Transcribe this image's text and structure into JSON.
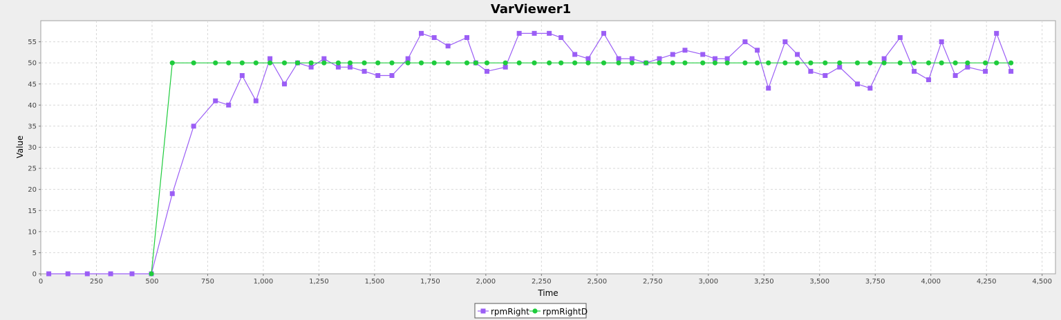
{
  "window": {
    "title": "VarViewer1"
  },
  "colors": {
    "background": "#eeeeee",
    "plot_background": "#ffffff",
    "rpmRight": "#9b5ef5",
    "rpmRightD": "#1ecc3c",
    "grid": "#d8d8d8"
  },
  "chart_data": {
    "type": "line",
    "title": "VarViewer1",
    "xlabel": "Time",
    "ylabel": "Value",
    "xlim": [
      0,
      4560
    ],
    "ylim": [
      0,
      60
    ],
    "x_ticks": [
      0,
      250,
      500,
      750,
      1000,
      1250,
      1500,
      1750,
      2000,
      2250,
      2500,
      2750,
      3000,
      3250,
      3500,
      3750,
      4000,
      4250,
      4500
    ],
    "x_tick_labels": [
      "0",
      "250",
      "500",
      "750",
      "1,000",
      "1,250",
      "1,500",
      "1,750",
      "2,000",
      "2,250",
      "2,500",
      "2,750",
      "3,000",
      "3,250",
      "3,500",
      "3,750",
      "4,000",
      "4,250",
      "4,500"
    ],
    "y_ticks": [
      0,
      5,
      10,
      15,
      20,
      25,
      30,
      35,
      40,
      45,
      50,
      55
    ],
    "y_tick_labels": [
      "0",
      "5",
      "10",
      "15",
      "20",
      "25",
      "30",
      "35",
      "40",
      "45",
      "50",
      "55"
    ],
    "grid": true,
    "legend_position": "bottom-center",
    "series": [
      {
        "name": "rpmRight",
        "marker": "square",
        "color": "#9b5ef5",
        "points": [
          [
            36,
            0
          ],
          [
            122,
            0
          ],
          [
            209,
            0
          ],
          [
            314,
            0
          ],
          [
            410,
            0
          ],
          [
            497,
            0
          ],
          [
            591,
            19
          ],
          [
            687,
            35
          ],
          [
            785,
            41
          ],
          [
            844,
            40
          ],
          [
            905,
            47
          ],
          [
            967,
            41
          ],
          [
            1030,
            51
          ],
          [
            1095,
            45
          ],
          [
            1154,
            50
          ],
          [
            1215,
            49
          ],
          [
            1273,
            51
          ],
          [
            1337,
            49
          ],
          [
            1390,
            49
          ],
          [
            1454,
            48
          ],
          [
            1515,
            47
          ],
          [
            1578,
            47
          ],
          [
            1650,
            51
          ],
          [
            1710,
            57
          ],
          [
            1768,
            56
          ],
          [
            1830,
            54
          ],
          [
            1915,
            56
          ],
          [
            1955,
            50
          ],
          [
            2005,
            48
          ],
          [
            2088,
            49
          ],
          [
            2150,
            57
          ],
          [
            2218,
            57
          ],
          [
            2285,
            57
          ],
          [
            2338,
            56
          ],
          [
            2400,
            52
          ],
          [
            2460,
            51
          ],
          [
            2530,
            57
          ],
          [
            2597,
            51
          ],
          [
            2657,
            51
          ],
          [
            2720,
            50
          ],
          [
            2780,
            51
          ],
          [
            2840,
            52
          ],
          [
            2895,
            53
          ],
          [
            2975,
            52
          ],
          [
            3030,
            51
          ],
          [
            3085,
            51
          ],
          [
            3165,
            55
          ],
          [
            3220,
            53
          ],
          [
            3270,
            44
          ],
          [
            3345,
            55
          ],
          [
            3400,
            52
          ],
          [
            3460,
            48
          ],
          [
            3525,
            47
          ],
          [
            3590,
            49
          ],
          [
            3670,
            45
          ],
          [
            3727,
            44
          ],
          [
            3790,
            51
          ],
          [
            3862,
            56
          ],
          [
            3925,
            48
          ],
          [
            3990,
            46
          ],
          [
            4048,
            55
          ],
          [
            4110,
            47
          ],
          [
            4165,
            49
          ],
          [
            4245,
            48
          ],
          [
            4295,
            57
          ],
          [
            4360,
            48
          ]
        ]
      },
      {
        "name": "rpmRightD",
        "marker": "circle",
        "color": "#1ecc3c",
        "points": [
          [
            497,
            0
          ],
          [
            591,
            50
          ],
          [
            687,
            50
          ],
          [
            785,
            50
          ],
          [
            844,
            50
          ],
          [
            905,
            50
          ],
          [
            967,
            50
          ],
          [
            1030,
            50
          ],
          [
            1095,
            50
          ],
          [
            1154,
            50
          ],
          [
            1215,
            50
          ],
          [
            1273,
            50
          ],
          [
            1337,
            50
          ],
          [
            1390,
            50
          ],
          [
            1454,
            50
          ],
          [
            1515,
            50
          ],
          [
            1578,
            50
          ],
          [
            1650,
            50
          ],
          [
            1710,
            50
          ],
          [
            1768,
            50
          ],
          [
            1830,
            50
          ],
          [
            1915,
            50
          ],
          [
            1955,
            50
          ],
          [
            2005,
            50
          ],
          [
            2088,
            50
          ],
          [
            2150,
            50
          ],
          [
            2218,
            50
          ],
          [
            2285,
            50
          ],
          [
            2338,
            50
          ],
          [
            2400,
            50
          ],
          [
            2460,
            50
          ],
          [
            2530,
            50
          ],
          [
            2597,
            50
          ],
          [
            2657,
            50
          ],
          [
            2720,
            50
          ],
          [
            2780,
            50
          ],
          [
            2840,
            50
          ],
          [
            2895,
            50
          ],
          [
            2975,
            50
          ],
          [
            3030,
            50
          ],
          [
            3085,
            50
          ],
          [
            3165,
            50
          ],
          [
            3220,
            50
          ],
          [
            3270,
            50
          ],
          [
            3345,
            50
          ],
          [
            3400,
            50
          ],
          [
            3460,
            50
          ],
          [
            3525,
            50
          ],
          [
            3590,
            50
          ],
          [
            3670,
            50
          ],
          [
            3727,
            50
          ],
          [
            3790,
            50
          ],
          [
            3862,
            50
          ],
          [
            3925,
            50
          ],
          [
            3990,
            50
          ],
          [
            4048,
            50
          ],
          [
            4110,
            50
          ],
          [
            4165,
            50
          ],
          [
            4245,
            50
          ],
          [
            4295,
            50
          ],
          [
            4360,
            50
          ]
        ]
      }
    ]
  }
}
